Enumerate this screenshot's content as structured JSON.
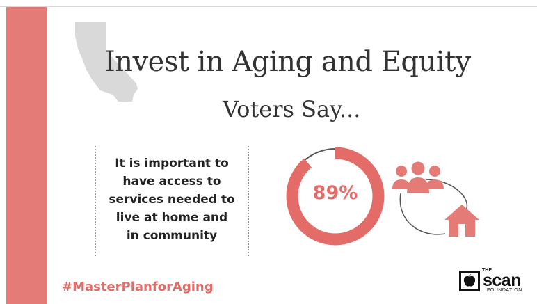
{
  "title": "Invest in Aging and Equity",
  "subtitle": "Voters Say...",
  "statement_lines": [
    "It is important to",
    "have access to",
    "services needed to",
    "live at home and",
    "in community"
  ],
  "stat": {
    "value_label": "89%",
    "fraction": 0.89
  },
  "hashtag": "#MasterPlanforAging",
  "logo": {
    "the": "THE",
    "name": "scan",
    "foundation": "FOUNDATION."
  },
  "icons": {
    "map": "california-map-icon",
    "people": "people-group-icon",
    "home": "house-icon"
  },
  "colors": {
    "accent": "#e57b76",
    "donut_fill": "#e46c68",
    "donut_track": "#555555",
    "map": "#d9d9d9"
  }
}
